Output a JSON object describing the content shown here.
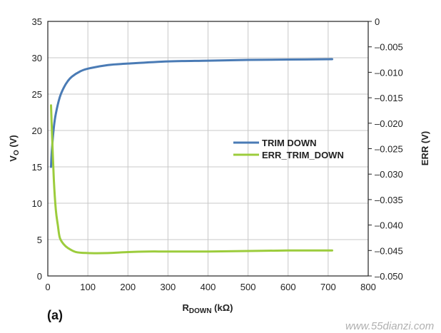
{
  "chart_data": {
    "type": "line",
    "panel_label": "(a)",
    "x_axis": {
      "label": "R",
      "label_subscript": "DOWN",
      "label_unit": " (kΩ)",
      "lim": [
        0,
        800
      ],
      "ticks": [
        0,
        100,
        200,
        300,
        400,
        500,
        600,
        700,
        800
      ],
      "tick_labels": [
        "0",
        "100",
        "200",
        "300",
        "400",
        "500",
        "600",
        "700",
        "800"
      ]
    },
    "y_axis_left": {
      "label": "V",
      "label_subscript": "O",
      "label_unit": " (V)",
      "lim": [
        0,
        35
      ],
      "ticks": [
        0,
        5,
        10,
        15,
        20,
        25,
        30,
        35
      ],
      "tick_labels": [
        "0",
        "5",
        "10",
        "15",
        "20",
        "25",
        "30",
        "35"
      ]
    },
    "y_axis_right": {
      "label": "ERR (V)",
      "lim": [
        -0.05,
        0
      ],
      "ticks": [
        0,
        -0.005,
        -0.01,
        -0.015,
        -0.02,
        -0.025,
        -0.03,
        -0.035,
        -0.04,
        -0.045,
        -0.05
      ],
      "tick_labels": [
        "0",
        "–0.005",
        "–0.010",
        "–0.015",
        "–0.020",
        "–0.025",
        "–0.030",
        "–0.035",
        "–0.040",
        "–0.045",
        "–0.050"
      ]
    },
    "grid": true,
    "legend_position": "middle-right",
    "series": [
      {
        "name": "TRIM DOWN",
        "axis": "left",
        "color": "#4a7bb5",
        "x": [
          8,
          10,
          15,
          20,
          30,
          40,
          50,
          60,
          80,
          100,
          150,
          200,
          300,
          400,
          500,
          600,
          710
        ],
        "y": [
          15.0,
          17.2,
          20.4,
          22.3,
          24.6,
          25.9,
          26.8,
          27.4,
          28.1,
          28.5,
          29.0,
          29.2,
          29.5,
          29.6,
          29.7,
          29.75,
          29.8
        ]
      },
      {
        "name": "ERR_TRIM_DOWN",
        "axis": "right",
        "color": "#9ccc3c",
        "x": [
          8,
          10,
          15,
          20,
          25,
          30,
          40,
          50,
          70,
          100,
          150,
          200,
          250,
          300,
          400,
          500,
          600,
          710
        ],
        "y": [
          -0.0165,
          -0.021,
          -0.031,
          -0.037,
          -0.04,
          -0.0425,
          -0.0438,
          -0.0445,
          -0.0453,
          -0.0455,
          -0.0455,
          -0.0453,
          -0.0452,
          -0.0452,
          -0.0452,
          -0.0451,
          -0.045,
          -0.045
        ]
      }
    ]
  },
  "watermark": "www.55dianzi.com"
}
